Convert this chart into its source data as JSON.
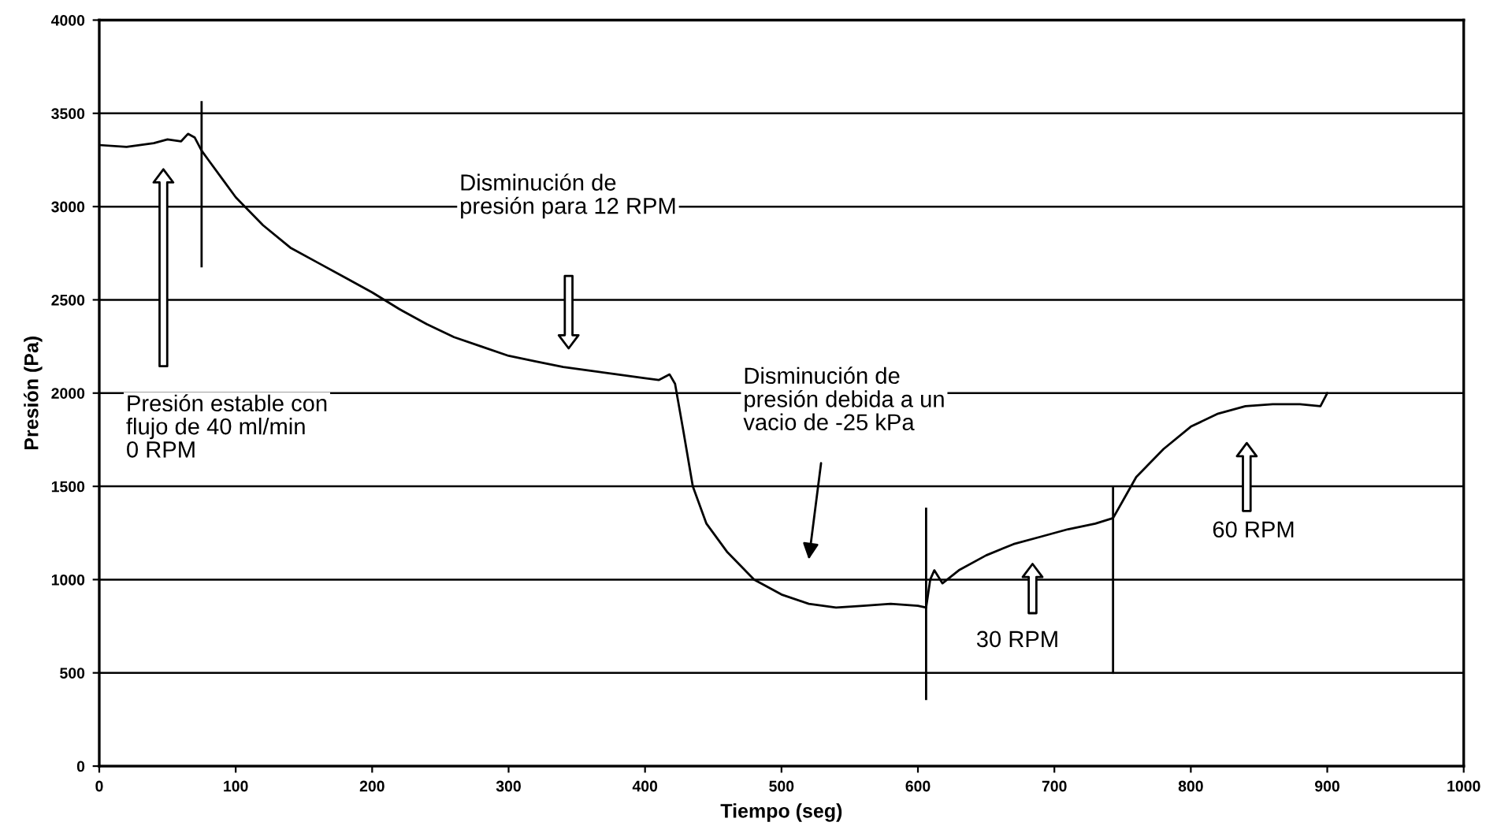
{
  "chart_data": {
    "type": "line",
    "xlabel": "Tiempo (seg)",
    "ylabel": "Presión (Pa)",
    "xlim": [
      0,
      1000
    ],
    "ylim": [
      0,
      4000
    ],
    "xticks": [
      0,
      100,
      200,
      300,
      400,
      500,
      600,
      700,
      800,
      900,
      1000
    ],
    "yticks": [
      0,
      500,
      1000,
      1500,
      2000,
      2500,
      3000,
      3500,
      4000
    ],
    "grid": "y",
    "marker": "none",
    "line_style": "solid",
    "series": [
      {
        "color": "#000000",
        "x": [
          0,
          20,
          40,
          50,
          60,
          65,
          70,
          75,
          80,
          90,
          100,
          120,
          140,
          160,
          180,
          200,
          220,
          240,
          260,
          280,
          300,
          320,
          340,
          360,
          380,
          400,
          410,
          418,
          422,
          428,
          435,
          445,
          460,
          480,
          500,
          520,
          540,
          560,
          580,
          600,
          606,
          609,
          612,
          618,
          630,
          650,
          670,
          690,
          710,
          730,
          743,
          750,
          760,
          780,
          800,
          820,
          840,
          860,
          880,
          895,
          900
        ],
        "values": [
          3330,
          3320,
          3340,
          3360,
          3350,
          3390,
          3370,
          3300,
          3250,
          3150,
          3050,
          2900,
          2780,
          2700,
          2620,
          2540,
          2450,
          2370,
          2300,
          2250,
          2200,
          2170,
          2140,
          2120,
          2100,
          2080,
          2070,
          2100,
          2050,
          1800,
          1500,
          1300,
          1150,
          1000,
          920,
          870,
          850,
          860,
          870,
          860,
          850,
          1000,
          1050,
          980,
          1050,
          1130,
          1190,
          1230,
          1270,
          1300,
          1330,
          1420,
          1550,
          1700,
          1820,
          1890,
          1930,
          1940,
          1940,
          1930,
          2000
        ]
      },
      {
        "color": "#000000",
        "x": [
          75,
          75
        ],
        "values": [
          3560,
          2680
        ]
      },
      {
        "color": "#000000",
        "x": [
          606,
          606
        ],
        "values": [
          1380,
          360
        ]
      },
      {
        "color": "#000000",
        "x": [
          743,
          743
        ],
        "values": [
          1490,
          500
        ]
      }
    ],
    "annotations": [
      "Presión estable con\nflujo de 40 ml/min\n0 RPM",
      "Disminución de\npresión para 12 RPM",
      "Disminución de\npresión debida a un\nvacio de -25 kPa",
      "30 RPM",
      "60 RPM"
    ]
  }
}
